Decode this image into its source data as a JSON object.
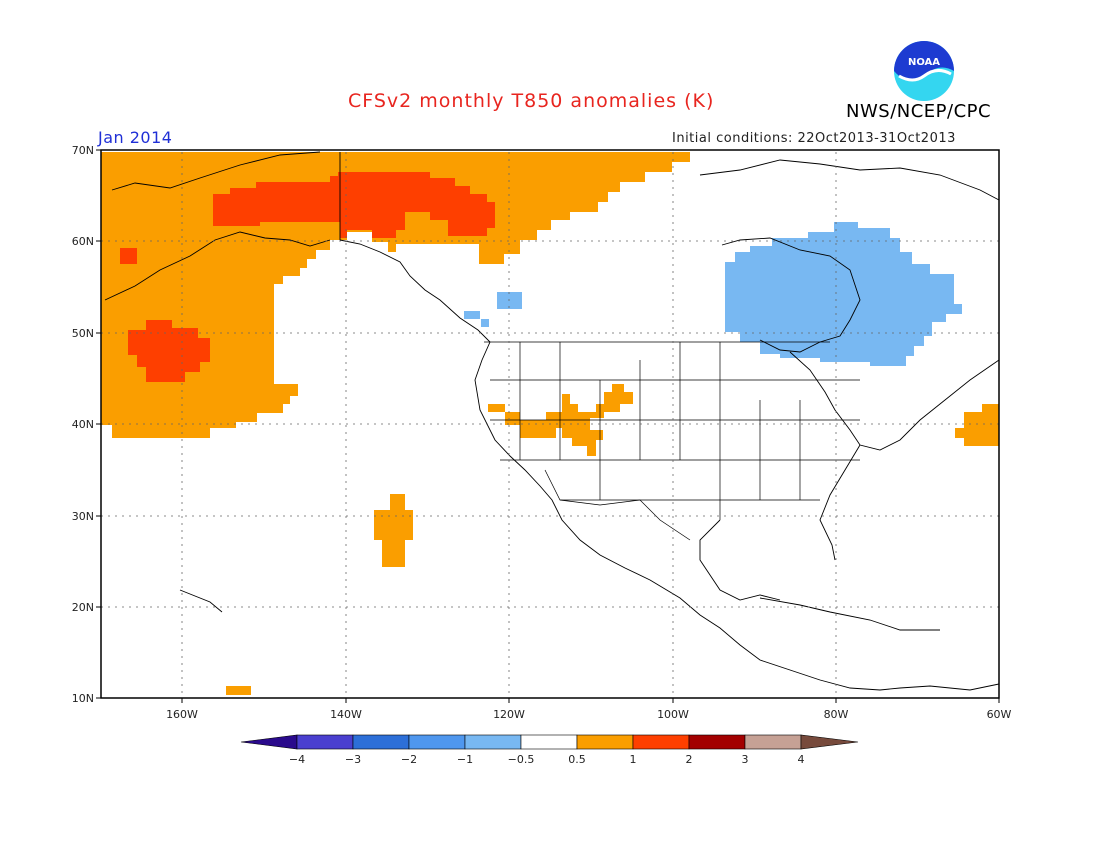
{
  "header": {
    "title": "CFSv2 monthly T850 anomalies (K)",
    "month": "Jan 2014",
    "initial_conditions": "Initial conditions: 22Oct2013-31Oct2013",
    "agency": "NWS/NCEP/CPC",
    "logo_text": "NOAA"
  },
  "map": {
    "lon_range": [
      -172,
      -60
    ],
    "lat_range": [
      10,
      70
    ],
    "lat_labels": [
      "10N",
      "20N",
      "30N",
      "40N",
      "50N",
      "60N",
      "70N"
    ],
    "lon_labels": [
      "160W",
      "140W",
      "120W",
      "100W",
      "80W",
      "60W"
    ]
  },
  "legend": {
    "tick_labels": [
      "-4",
      "-3",
      "-2",
      "-1",
      "-0.5",
      "0.5",
      "1",
      "2",
      "3",
      "4"
    ],
    "colors": {
      "below_minus4": "#2a0a8c",
      "minus4_minus3": "#4a3fcf",
      "minus3_minus2": "#2d6fd8",
      "minus2_minus1": "#4f97ee",
      "minus1_minus05": "#78b8f2",
      "neutral": "#ffffff",
      "p05_1": "#fa9e00",
      "p1_2": "#fe3f00",
      "p2_3": "#a30000",
      "p3_4": "#c6a195",
      "above_4": "#774a3c"
    }
  }
}
